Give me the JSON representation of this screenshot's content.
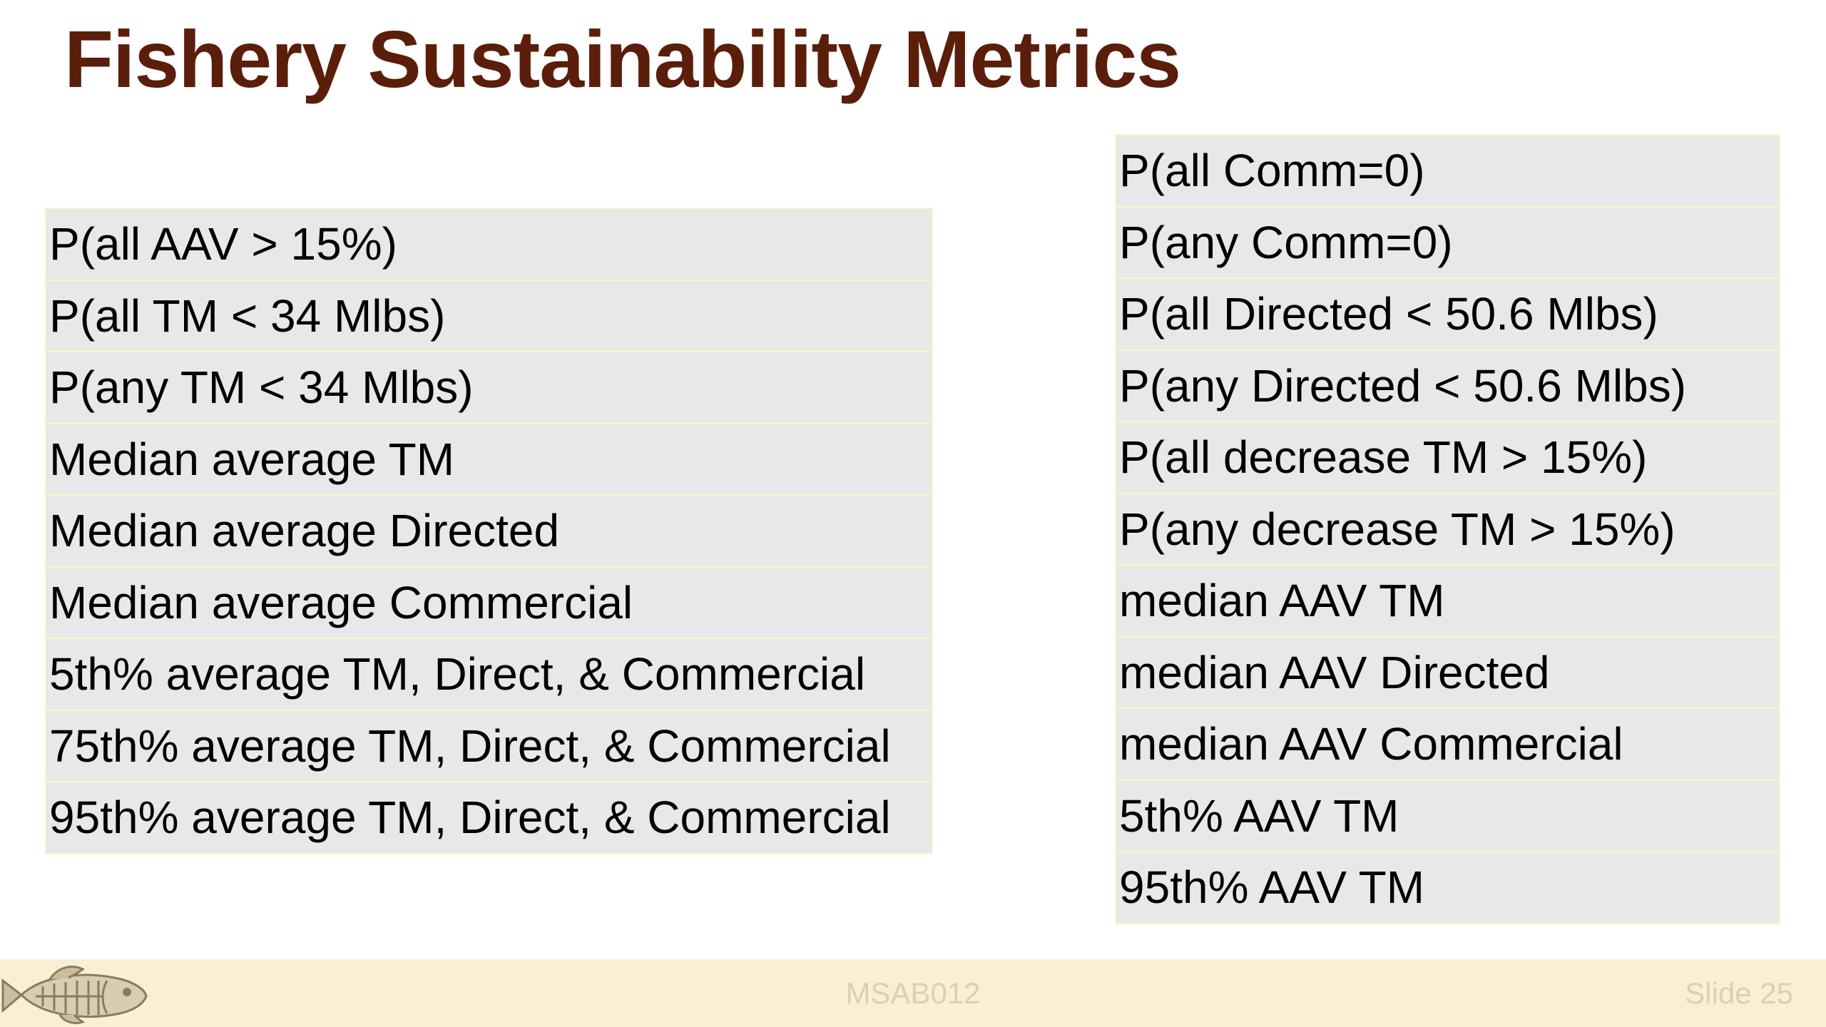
{
  "title": "Fishery Sustainability Metrics",
  "left_metrics": [
    "P(all AAV > 15%)",
    "P(all TM < 34 Mlbs)",
    "P(any TM < 34 Mlbs)",
    "Median average TM",
    "Median average Directed",
    "Median average Commercial",
    "5th% average TM, Direct, & Commercial",
    "75th% average TM, Direct, & Commercial",
    "95th% average TM, Direct, & Commercial"
  ],
  "right_metrics": [
    "P(all Comm=0)",
    "P(any Comm=0)",
    "P(all Directed < 50.6 Mlbs)",
    "P(any Directed < 50.6 Mlbs)",
    "P(all decrease TM > 15%)",
    "P(any decrease TM > 15%)",
    "median AAV TM",
    "median AAV Directed",
    "median AAV Commercial",
    "5th% AAV TM",
    "95th% AAV TM"
  ],
  "footer": {
    "center_text": "MSAB012",
    "slide_number": "Slide 25",
    "logo_icon": "fish-logo-icon"
  },
  "colors": {
    "title": "#5a1e0a",
    "cell_background": "#e8e8e8",
    "cell_border": "#faf6c8",
    "footer_background": "#f8efd4",
    "footer_text": "#ddd0b0"
  }
}
